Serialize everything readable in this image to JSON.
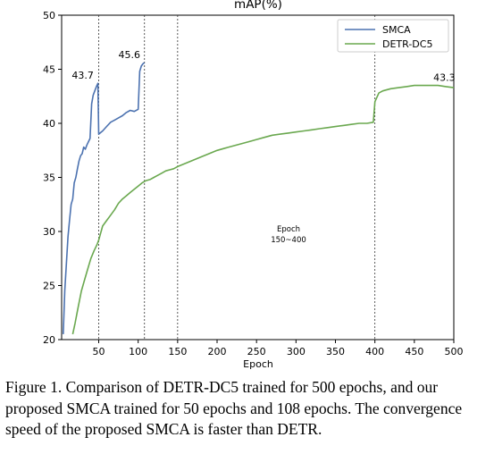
{
  "chart_data": {
    "type": "line",
    "title": "mAP(%)",
    "xlabel": "Epoch",
    "ylabel": "",
    "xlim": [
      3,
      500
    ],
    "ylim": [
      20,
      50
    ],
    "xticks": [
      50,
      100,
      150,
      200,
      250,
      300,
      350,
      400,
      450,
      500
    ],
    "yticks": [
      20,
      25,
      30,
      35,
      40,
      45,
      50
    ],
    "legend_position": "top-right",
    "vlines": [
      50,
      108,
      150,
      400
    ],
    "series": [
      {
        "name": "SMCA",
        "color": "#4c72b0",
        "x": [
          5,
          7,
          9,
          11,
          13,
          15,
          17,
          19,
          21,
          23,
          25,
          27,
          29,
          31,
          33,
          35,
          37,
          39,
          41,
          43,
          45,
          47,
          49,
          50,
          55,
          60,
          65,
          70,
          75,
          80,
          85,
          90,
          95,
          100,
          102,
          104,
          106,
          108
        ],
        "values": [
          20.5,
          24.5,
          27.0,
          29.5,
          31.0,
          32.5,
          33.0,
          34.5,
          35.0,
          35.8,
          36.5,
          37.0,
          37.2,
          37.8,
          37.6,
          38.0,
          38.3,
          38.6,
          41.8,
          42.6,
          43.0,
          43.4,
          43.7,
          39.0,
          39.3,
          39.7,
          40.1,
          40.3,
          40.5,
          40.7,
          41.0,
          41.2,
          41.1,
          41.3,
          44.8,
          45.3,
          45.5,
          45.6
        ],
        "peak_label": [
          "43.7",
          "45.6"
        ]
      },
      {
        "name": "DETR-DC5",
        "color": "#6aa84f",
        "x": [
          17,
          20,
          24,
          28,
          32,
          36,
          40,
          44,
          48,
          50,
          55,
          60,
          65,
          70,
          75,
          80,
          85,
          90,
          95,
          100,
          105,
          110,
          115,
          120,
          125,
          130,
          135,
          140,
          145,
          150,
          160,
          170,
          180,
          190,
          200,
          210,
          220,
          230,
          240,
          250,
          260,
          270,
          280,
          290,
          300,
          310,
          320,
          330,
          340,
          350,
          360,
          370,
          380,
          390,
          398,
          400,
          405,
          410,
          420,
          430,
          440,
          450,
          460,
          470,
          480,
          490,
          500
        ],
        "values": [
          20.5,
          21.5,
          23.0,
          24.5,
          25.5,
          26.5,
          27.5,
          28.2,
          28.8,
          29.2,
          30.5,
          31.0,
          31.5,
          32.0,
          32.6,
          33.0,
          33.3,
          33.6,
          33.9,
          34.2,
          34.5,
          34.7,
          34.8,
          35.0,
          35.2,
          35.4,
          35.6,
          35.7,
          35.8,
          36.0,
          36.3,
          36.6,
          36.9,
          37.2,
          37.5,
          37.7,
          37.9,
          38.1,
          38.3,
          38.5,
          38.7,
          38.9,
          39.0,
          39.1,
          39.2,
          39.3,
          39.4,
          39.5,
          39.6,
          39.7,
          39.8,
          39.9,
          40.0,
          40.0,
          40.1,
          42.0,
          42.8,
          43.0,
          43.2,
          43.3,
          43.4,
          43.5,
          43.5,
          43.5,
          43.5,
          43.4,
          43.3
        ],
        "end_label": "43.3"
      }
    ],
    "annotation": [
      "Epoch",
      "150~400"
    ]
  },
  "caption": "Figure 1. Comparison of DETR-DC5 trained for 500 epochs, and our proposed SMCA trained for 50 epochs and 108 epochs. The convergence speed of the proposed SMCA is faster than DETR."
}
